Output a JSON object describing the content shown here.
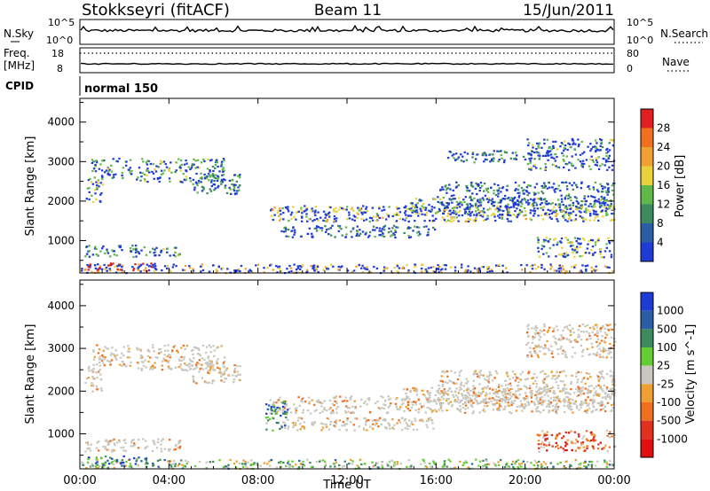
{
  "header": {
    "station": "Stokkseyri (fitACF)",
    "beam": "Beam 11",
    "date": "15/Jun/2011"
  },
  "top_panels": {
    "nsky_label": "N.Sky",
    "nsky_ticks": [
      "10^5",
      "10^0"
    ],
    "nsearch_label": "N.Search",
    "nsearch_ticks": [
      "10^5",
      "10^0"
    ],
    "freq_label": "Freq.",
    "freq_unit": "[MHz]",
    "freq_ticks": [
      "18",
      "8"
    ],
    "nave_label": "Nave",
    "nave_ticks": [
      "80",
      "0"
    ],
    "cpid_label": "CPID",
    "cpid_value": "normal 150"
  },
  "colors": {
    "power_scale": [
      "#1f3bd6",
      "#2a5fa8",
      "#3c8a5e",
      "#5fb84a",
      "#e8d13a",
      "#f0a030",
      "#f07020",
      "#e02020"
    ],
    "velocity_scale": [
      "#1f3bd6",
      "#2a5fa8",
      "#3c8a5e",
      "#66cc33",
      "#c8c8c0",
      "#f0a030",
      "#f07020",
      "#e03020",
      "#e01010"
    ]
  },
  "chart_data": [
    {
      "type": "heatmap",
      "name": "power",
      "title": "",
      "xlabel": "",
      "ylabel": "Slant Range [km]",
      "x_ticks": [
        "00:00",
        "04:00",
        "08:00",
        "12:00",
        "16:00",
        "20:00",
        "00:00"
      ],
      "y_ticks": [
        "1000",
        "2000",
        "3000",
        "4000"
      ],
      "ylim": [
        180,
        4600
      ],
      "colorbar_label": "Power [dB]",
      "colorbar_ticks": [
        "4",
        "8",
        "12",
        "16",
        "20",
        "24",
        "28"
      ],
      "bands": [
        {
          "t0": 0.0,
          "t1": 24.0,
          "r0": 200,
          "r1": 420,
          "level": 0.55
        },
        {
          "t0": 0.3,
          "t1": 3.5,
          "r0": 250,
          "r1": 450,
          "level": 0.9
        },
        {
          "t0": 0.2,
          "t1": 4.5,
          "r0": 600,
          "r1": 900,
          "level": 0.3
        },
        {
          "t0": 0.2,
          "t1": 1.0,
          "r0": 2000,
          "r1": 2600,
          "level": 0.4
        },
        {
          "t0": 0.5,
          "t1": 2.3,
          "r0": 2600,
          "r1": 3100,
          "level": 0.3
        },
        {
          "t0": 2.5,
          "t1": 6.5,
          "r0": 2500,
          "r1": 3100,
          "level": 0.3
        },
        {
          "t0": 5.0,
          "t1": 7.2,
          "r0": 2200,
          "r1": 2700,
          "level": 0.25
        },
        {
          "t0": 8.5,
          "t1": 24.0,
          "r0": 1500,
          "r1": 1900,
          "level": 0.45
        },
        {
          "t0": 9.0,
          "t1": 16.0,
          "r0": 1100,
          "r1": 1400,
          "level": 0.2
        },
        {
          "t0": 14.5,
          "t1": 24.0,
          "r0": 1650,
          "r1": 2100,
          "level": 0.35
        },
        {
          "t0": 16.0,
          "t1": 24.0,
          "r0": 1900,
          "r1": 2500,
          "level": 0.2
        },
        {
          "t0": 20.5,
          "t1": 24.0,
          "r0": 600,
          "r1": 1100,
          "level": 0.4
        },
        {
          "t0": 16.5,
          "t1": 20.0,
          "r0": 3000,
          "r1": 3300,
          "level": 0.2
        },
        {
          "t0": 20.0,
          "t1": 24.0,
          "r0": 2800,
          "r1": 3600,
          "level": 0.3
        }
      ]
    },
    {
      "type": "heatmap",
      "name": "velocity",
      "title": "",
      "xlabel": "Time UT",
      "ylabel": "Slant Range [km]",
      "x_ticks": [
        "00:00",
        "04:00",
        "08:00",
        "12:00",
        "16:00",
        "20:00",
        "00:00"
      ],
      "y_ticks": [
        "1000",
        "2000",
        "3000",
        "4000"
      ],
      "ylim": [
        180,
        4600
      ],
      "colorbar_label": "Velocity [m s^-1]",
      "colorbar_ticks": [
        "1000",
        "500",
        "100",
        "25",
        "-25",
        "-100",
        "-500",
        "-1000"
      ],
      "bands": [
        {
          "t0": 0.0,
          "t1": 24.0,
          "r0": 200,
          "r1": 420,
          "level": 0.4
        },
        {
          "t0": 0.3,
          "t1": 3.0,
          "r0": 250,
          "r1": 500,
          "level": 0.2
        },
        {
          "t0": 0.2,
          "t1": 4.5,
          "r0": 600,
          "r1": 900,
          "level": 0.5
        },
        {
          "t0": 0.2,
          "t1": 1.0,
          "r0": 2000,
          "r1": 2600,
          "level": 0.5
        },
        {
          "t0": 0.5,
          "t1": 2.3,
          "r0": 2600,
          "r1": 3100,
          "level": 0.5
        },
        {
          "t0": 2.5,
          "t1": 6.5,
          "r0": 2500,
          "r1": 3100,
          "level": 0.5
        },
        {
          "t0": 5.0,
          "t1": 7.2,
          "r0": 2200,
          "r1": 2700,
          "level": 0.5
        },
        {
          "t0": 8.5,
          "t1": 24.0,
          "r0": 1500,
          "r1": 1900,
          "level": 0.5
        },
        {
          "t0": 9.0,
          "t1": 16.0,
          "r0": 1100,
          "r1": 1400,
          "level": 0.5
        },
        {
          "t0": 14.5,
          "t1": 24.0,
          "r0": 1650,
          "r1": 2100,
          "level": 0.5
        },
        {
          "t0": 16.0,
          "t1": 24.0,
          "r0": 1900,
          "r1": 2500,
          "level": 0.5
        },
        {
          "t0": 20.5,
          "t1": 24.0,
          "r0": 600,
          "r1": 1100,
          "level": 0.75
        },
        {
          "t0": 20.0,
          "t1": 24.0,
          "r0": 2800,
          "r1": 3600,
          "level": 0.5
        },
        {
          "t0": 8.3,
          "t1": 9.3,
          "r0": 1100,
          "r1": 1800,
          "level": 0.25
        }
      ]
    }
  ]
}
